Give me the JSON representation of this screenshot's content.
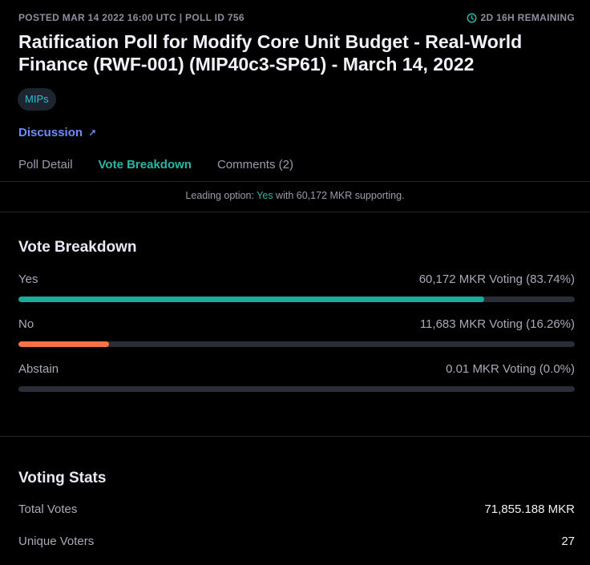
{
  "meta": {
    "posted": "POSTED MAR 14 2022 16:00 UTC | POLL ID 756",
    "remaining": "2D 16H REMAINING",
    "remaining_icon": "clock-icon"
  },
  "title": "Ratification Poll for Modify Core Unit Budget - Real-World Finance (RWF-001) (MIP40c3-SP61) - March 14, 2022",
  "tag": "MIPs",
  "discussion": {
    "label": "Discussion",
    "icon": "arrow-up-right-icon"
  },
  "tabs": [
    {
      "label": "Poll Detail",
      "active": false
    },
    {
      "label": "Vote Breakdown",
      "active": true
    },
    {
      "label": "Comments (2)",
      "active": false
    }
  ],
  "leading": {
    "prefix": "Leading option: ",
    "option": "Yes",
    "suffix": " with 60,172 MKR supporting."
  },
  "breakdown": {
    "title": "Vote Breakdown",
    "options": [
      {
        "label": "Yes",
        "value": "60,172 MKR Voting (83.74%)",
        "percent": 83.74,
        "color": "#1aab9b"
      },
      {
        "label": "No",
        "value": "11,683 MKR Voting (16.26%)",
        "percent": 16.26,
        "color": "#f77249"
      },
      {
        "label": "Abstain",
        "value": "0.01 MKR Voting (0.0%)",
        "percent": 0.0,
        "color": "#708390"
      }
    ]
  },
  "stats": {
    "title": "Voting Stats",
    "rows": [
      {
        "label": "Total Votes",
        "value": "71,855.188 MKR"
      },
      {
        "label": "Unique Voters",
        "value": "27"
      }
    ]
  },
  "colors": {
    "accent": "#2ab6a2",
    "link": "#6e8cf7",
    "background": "#000000"
  }
}
